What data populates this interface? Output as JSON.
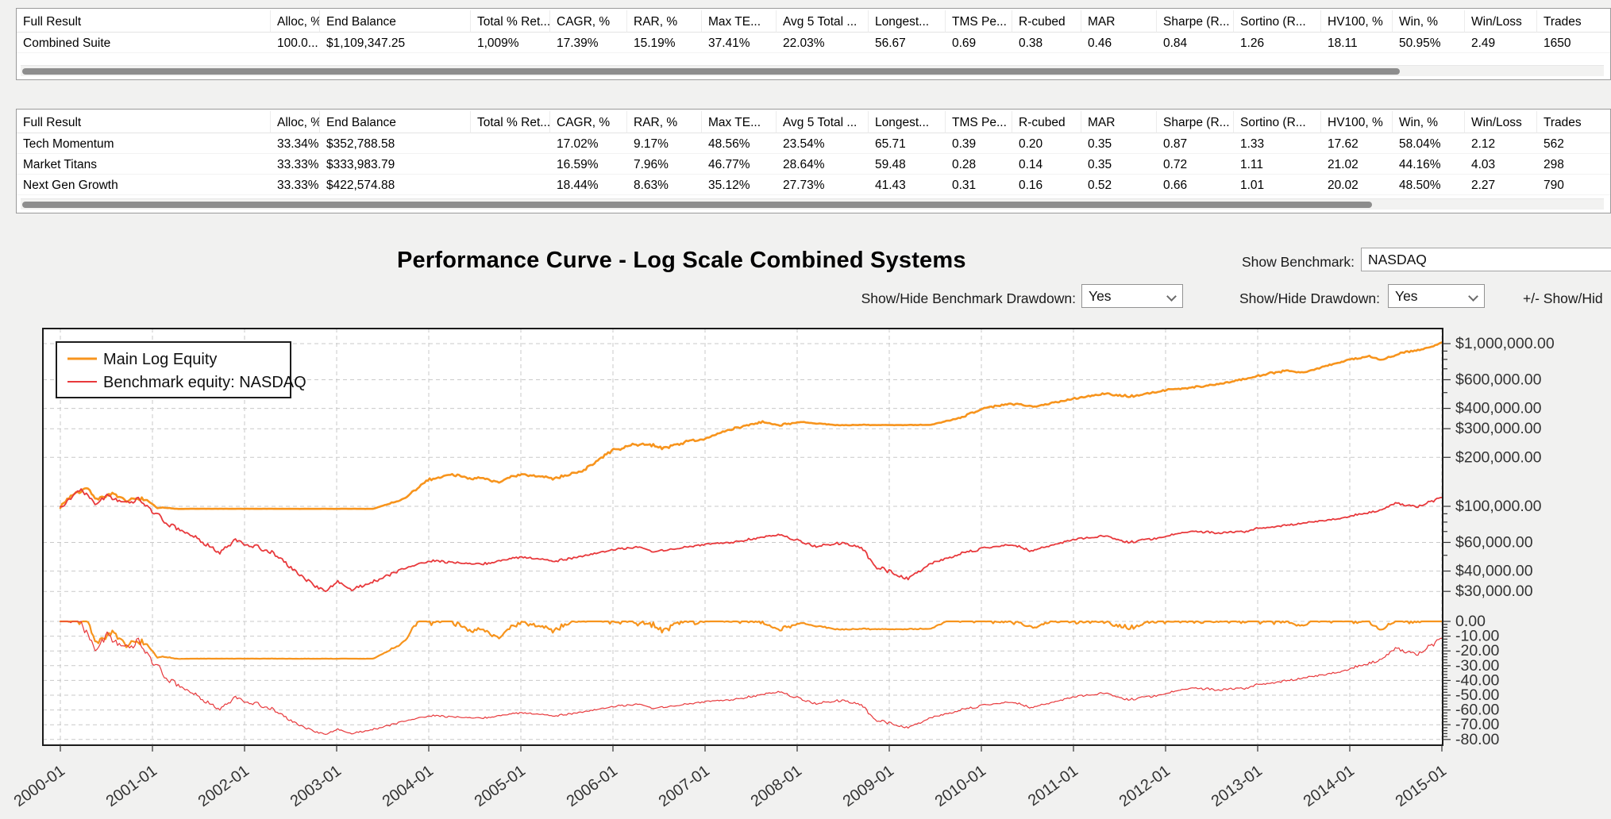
{
  "window": {
    "background": "#f1f1f0"
  },
  "tables": {
    "columns": [
      "Full Result",
      "Alloc, %",
      "End Balance",
      "Total % Ret...",
      "CAGR, %",
      "RAR, %",
      "Max TE...",
      "Avg 5 Total ...",
      "Longest...",
      "TMS Pe...",
      "R-cubed",
      "MAR",
      "Sharpe (R...",
      "Sortino (R...",
      "HV100, %",
      "Win, %",
      "Win/Loss",
      "Trades"
    ],
    "summary": {
      "rows": [
        [
          "Combined Suite",
          "100.0...",
          "$1,109,347.25",
          "1,009%",
          "17.39%",
          "15.19%",
          "37.41%",
          "22.03%",
          "56.67",
          "0.69",
          "0.38",
          "0.46",
          "0.84",
          "1.26",
          "18.11",
          "50.95%",
          "2.49",
          "1650"
        ]
      ]
    },
    "systems": {
      "rows": [
        [
          "Tech Momentum",
          "33.34%",
          "$352,788.58",
          "",
          "17.02%",
          "9.17%",
          "48.56%",
          "23.54%",
          "65.71",
          "0.39",
          "0.20",
          "0.35",
          "0.87",
          "1.33",
          "17.62",
          "58.04%",
          "2.12",
          "562"
        ],
        [
          "Market Titans",
          "33.33%",
          "$333,983.79",
          "",
          "16.59%",
          "7.96%",
          "46.77%",
          "28.64%",
          "59.48",
          "0.28",
          "0.14",
          "0.35",
          "0.72",
          "1.11",
          "21.02",
          "44.16%",
          "4.03",
          "298"
        ],
        [
          "Next Gen Growth",
          "33.33%",
          "$422,574.88",
          "",
          "18.44%",
          "8.63%",
          "35.12%",
          "27.73%",
          "41.43",
          "0.31",
          "0.16",
          "0.52",
          "0.66",
          "1.01",
          "20.02",
          "48.50%",
          "2.27",
          "790"
        ]
      ]
    }
  },
  "controls": {
    "show_benchmark_label": "Show Benchmark:",
    "benchmark_value": "NASDAQ",
    "benchmark_drawdown_label": "Show/Hide Benchmark Drawdown:",
    "benchmark_drawdown_value": "Yes",
    "drawdown_label": "Show/Hide Drawdown:",
    "drawdown_value": "Yes",
    "extra_label": "+/- Show/Hid"
  },
  "chart_data": {
    "type": "line",
    "title": "Performance Curve - Log Scale Combined Systems",
    "legend_position": "top-left",
    "grid": "dashed",
    "x_axis": {
      "tick_labels": [
        "2000-01",
        "2001-01",
        "2002-01",
        "2003-01",
        "2004-01",
        "2005-01",
        "2006-01",
        "2007-01",
        "2008-01",
        "2009-01",
        "2010-01",
        "2011-01",
        "2012-01",
        "2013-01",
        "2014-01",
        "2015-01"
      ],
      "range": [
        2000,
        2015.06
      ]
    },
    "y_axis_equity": {
      "scale": "log",
      "tick_values": [
        1000000,
        600000,
        400000,
        300000,
        200000,
        100000,
        60000,
        40000,
        30000
      ],
      "tick_labels": [
        "$1,000,000.00",
        "$600,000.00",
        "$400,000.00",
        "$300,000.00",
        "$200,000.00",
        "$100,000.00",
        "$60,000.00",
        "$40,000.00",
        "$30,000.00"
      ]
    },
    "y_axis_drawdown": {
      "scale": "linear",
      "tick_values": [
        0,
        -10,
        -20,
        -30,
        -40,
        -50,
        -60,
        -70,
        -80
      ],
      "tick_labels": [
        "0.00",
        "-10.00",
        "-20.00",
        "-30.00",
        "-40.00",
        "-50.00",
        "-60.00",
        "-70.00",
        "-80.00"
      ],
      "range": [
        0,
        -80
      ]
    },
    "series": [
      {
        "name": "Main Log Equity",
        "color": "#F7941D",
        "stroke_width": 2.6,
        "noise": 0.0095,
        "seed": 7,
        "anchors": [
          [
            2000.0,
            100000,
            0.9
          ],
          [
            2000.12,
            117000,
            1.0
          ],
          [
            2000.28,
            131000,
            1.0
          ],
          [
            2000.4,
            111000,
            1.1
          ],
          [
            2000.55,
            121000,
            1.0
          ],
          [
            2000.72,
            106000,
            1.0
          ],
          [
            2000.88,
            112000,
            0.9
          ],
          [
            2001.05,
            98000,
            0.5
          ],
          [
            2001.3,
            96500,
            0.05
          ],
          [
            2003.4,
            96500,
            0.05
          ],
          [
            2003.75,
            112000,
            0.7
          ],
          [
            2004.0,
            146000,
            0.8
          ],
          [
            2004.25,
            158000,
            0.8
          ],
          [
            2004.5,
            149000,
            0.9
          ],
          [
            2004.75,
            142000,
            0.9
          ],
          [
            2005.0,
            155000,
            0.8
          ],
          [
            2005.35,
            149000,
            0.8
          ],
          [
            2005.7,
            168000,
            0.8
          ],
          [
            2006.0,
            222000,
            0.8
          ],
          [
            2006.3,
            243000,
            0.9
          ],
          [
            2006.55,
            228000,
            0.9
          ],
          [
            2006.8,
            250000,
            0.7
          ],
          [
            2007.0,
            262000,
            0.7
          ],
          [
            2007.3,
            298000,
            0.7
          ],
          [
            2007.6,
            332000,
            0.7
          ],
          [
            2007.8,
            318000,
            0.6
          ],
          [
            2008.05,
            328000,
            0.35
          ],
          [
            2008.4,
            316000,
            0.2
          ],
          [
            2009.45,
            316000,
            0.15
          ],
          [
            2009.7,
            342000,
            0.5
          ],
          [
            2010.0,
            398000,
            0.6
          ],
          [
            2010.3,
            424000,
            0.6
          ],
          [
            2010.55,
            412000,
            0.6
          ],
          [
            2010.85,
            442000,
            0.5
          ],
          [
            2011.0,
            462000,
            0.5
          ],
          [
            2011.35,
            492000,
            0.6
          ],
          [
            2011.6,
            474000,
            0.7
          ],
          [
            2011.85,
            498000,
            0.5
          ],
          [
            2012.0,
            515000,
            0.5
          ],
          [
            2012.35,
            545000,
            0.6
          ],
          [
            2012.65,
            572000,
            0.5
          ],
          [
            2013.0,
            635000,
            0.5
          ],
          [
            2013.3,
            685000,
            0.6
          ],
          [
            2013.5,
            668000,
            0.6
          ],
          [
            2013.8,
            742000,
            0.5
          ],
          [
            2014.0,
            795000,
            0.5
          ],
          [
            2014.2,
            842000,
            0.6
          ],
          [
            2014.35,
            788000,
            0.7
          ],
          [
            2014.55,
            868000,
            0.5
          ],
          [
            2014.75,
            920000,
            0.5
          ],
          [
            2014.9,
            958000,
            0.4
          ],
          [
            2015.06,
            1055000,
            0.4
          ]
        ]
      },
      {
        "name": "Benchmark equity: NASDAQ",
        "color": "#E8393C",
        "stroke_width": 1.8,
        "noise": 0.0115,
        "seed": 13,
        "anchors": [
          [
            2000.0,
            100000,
            0.8
          ],
          [
            2000.1,
            112000,
            1.0
          ],
          [
            2000.22,
            130000,
            1.0
          ],
          [
            2000.38,
            108000,
            1.1
          ],
          [
            2000.52,
            119000,
            1.0
          ],
          [
            2000.68,
            104000,
            1.0
          ],
          [
            2000.85,
            111000,
            1.0
          ],
          [
            2001.0,
            93000,
            1.0
          ],
          [
            2001.18,
            77000,
            1.1
          ],
          [
            2001.4,
            67000,
            1.0
          ],
          [
            2001.58,
            58000,
            1.0
          ],
          [
            2001.72,
            51500,
            1.0
          ],
          [
            2001.9,
            61500,
            0.9
          ],
          [
            2002.1,
            57500,
            0.9
          ],
          [
            2002.3,
            51500,
            0.9
          ],
          [
            2002.55,
            40000,
            1.0
          ],
          [
            2002.75,
            33000,
            1.0
          ],
          [
            2002.88,
            30500,
            0.9
          ],
          [
            2003.02,
            34000,
            0.8
          ],
          [
            2003.17,
            30800,
            0.8
          ],
          [
            2003.35,
            33500,
            0.7
          ],
          [
            2003.6,
            38500,
            0.7
          ],
          [
            2004.0,
            46800,
            0.6
          ],
          [
            2004.3,
            44800,
            0.6
          ],
          [
            2004.6,
            44300,
            0.6
          ],
          [
            2004.9,
            47800,
            0.5
          ],
          [
            2005.1,
            48300,
            0.5
          ],
          [
            2005.35,
            46300,
            0.5
          ],
          [
            2005.65,
            49000,
            0.5
          ],
          [
            2006.0,
            53800,
            0.5
          ],
          [
            2006.25,
            55800,
            0.5
          ],
          [
            2006.45,
            52400,
            0.5
          ],
          [
            2006.8,
            56400,
            0.4
          ],
          [
            2007.0,
            58300,
            0.4
          ],
          [
            2007.3,
            60000,
            0.5
          ],
          [
            2007.6,
            63800,
            0.5
          ],
          [
            2007.8,
            66800,
            0.5
          ],
          [
            2008.0,
            61800,
            0.6
          ],
          [
            2008.2,
            56800,
            0.7
          ],
          [
            2008.5,
            59800,
            0.6
          ],
          [
            2008.7,
            54800,
            0.8
          ],
          [
            2008.85,
            42000,
            1.0
          ],
          [
            2009.0,
            40000,
            0.9
          ],
          [
            2009.2,
            36400,
            0.9
          ],
          [
            2009.5,
            45800,
            0.7
          ],
          [
            2009.8,
            51800,
            0.6
          ],
          [
            2010.0,
            54800,
            0.5
          ],
          [
            2010.3,
            58300,
            0.5
          ],
          [
            2010.55,
            53300,
            0.6
          ],
          [
            2010.8,
            58800,
            0.5
          ],
          [
            2011.0,
            62800,
            0.4
          ],
          [
            2011.3,
            65800,
            0.4
          ],
          [
            2011.6,
            60800,
            0.6
          ],
          [
            2011.85,
            62800,
            0.5
          ],
          [
            2012.0,
            65800,
            0.4
          ],
          [
            2012.3,
            70300,
            0.4
          ],
          [
            2012.6,
            68300,
            0.4
          ],
          [
            2012.85,
            69800,
            0.4
          ],
          [
            2013.0,
            73300,
            0.4
          ],
          [
            2013.3,
            76300,
            0.4
          ],
          [
            2013.6,
            79800,
            0.4
          ],
          [
            2013.9,
            84800,
            0.4
          ],
          [
            2014.05,
            88000,
            0.4
          ],
          [
            2014.3,
            94000,
            0.4
          ],
          [
            2014.5,
            105000,
            0.5
          ],
          [
            2014.72,
            99000,
            0.6
          ],
          [
            2014.9,
            108000,
            0.5
          ],
          [
            2015.0,
            114500,
            0.4
          ],
          [
            2015.06,
            113000,
            0.3
          ]
        ]
      }
    ],
    "drawdown_series": [
      {
        "name": "Main drawdown",
        "derived_from": "Main Log Equity",
        "color": "#F7941D",
        "stroke_width": 2.2
      },
      {
        "name": "Benchmark drawdown",
        "derived_from": "Benchmark equity: NASDAQ",
        "color": "#E8393C",
        "stroke_width": 1.2
      }
    ]
  }
}
